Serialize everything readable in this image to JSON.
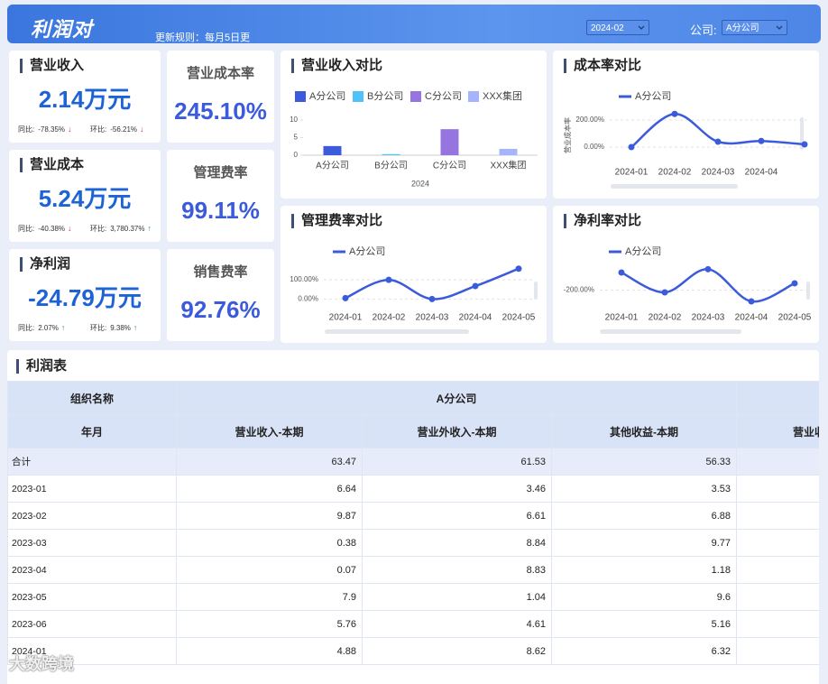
{
  "header": {
    "title": "利润对",
    "subtitle": "更新规则：每月5日更",
    "date": "2024-02",
    "company_label": "公司:",
    "company": "A分公司"
  },
  "kpis": [
    {
      "title": "营业收入",
      "value": "2.14万元",
      "yoy_label": "同比:",
      "yoy": "-78.35%",
      "yoy_dir": "down",
      "mom_label": "环比:",
      "mom": "-56.21%",
      "mom_dir": "down"
    },
    {
      "title": "营业成本",
      "value": "5.24万元",
      "yoy_label": "同比:",
      "yoy": "-40.38%",
      "yoy_dir": "down",
      "mom_label": "环比:",
      "mom": "3,780.37%",
      "mom_dir": "up"
    },
    {
      "title": "净利润",
      "value": "-24.79万元",
      "yoy_label": "同比:",
      "yoy": "2.07%",
      "yoy_dir": "up",
      "mom_label": "环比:",
      "mom": "9.38%",
      "mom_dir": "up"
    }
  ],
  "rates": [
    {
      "title": "营业成本率",
      "value": "245.10%"
    },
    {
      "title": "管理费率",
      "value": "99.11%"
    },
    {
      "title": "销售费率",
      "value": "92.76%"
    }
  ],
  "chart_data": [
    {
      "type": "bar",
      "title": "营业收入对比",
      "categories": [
        "A分公司",
        "B分公司",
        "C分公司",
        "XXX集团"
      ],
      "values": [
        2.6,
        0.3,
        7.4,
        1.8
      ],
      "colors": [
        "#3b5bdb",
        "#4fc3f7",
        "#9775e0",
        "#a5b4fc"
      ],
      "xlabel": "2024",
      "ylim": [
        0,
        10
      ],
      "yticks": [
        0,
        5,
        10
      ]
    },
    {
      "type": "line",
      "title": "成本率对比",
      "ylabel": "营业成本率",
      "categories": [
        "2024-01",
        "2024-02",
        "2024-03",
        "2024-04",
        null
      ],
      "series": [
        {
          "name": "A分公司",
          "color": "#3b5bdb",
          "values": [
            0,
            245.1,
            40,
            45,
            20
          ]
        }
      ],
      "ylim": [
        -100,
        260
      ],
      "yticks": [
        {
          "value": 0,
          "label": "0.00%"
        },
        {
          "value": 200,
          "label": "200.00%"
        }
      ],
      "grid": true
    },
    {
      "type": "line",
      "title": "管理费率对比",
      "categories": [
        "2024-01",
        "2024-02",
        "2024-03",
        "2024-04",
        "2024-05"
      ],
      "series": [
        {
          "name": "A分公司",
          "color": "#3b5bdb",
          "values": [
            5,
            99.11,
            0,
            67,
            157
          ]
        }
      ],
      "ylim": [
        -40,
        165
      ],
      "yticks": [
        {
          "value": 0,
          "label": "0.00%"
        },
        {
          "value": 100,
          "label": "100.00%"
        }
      ],
      "grid": true
    },
    {
      "type": "line",
      "title": "净利率对比",
      "categories": [
        "2024-01",
        "2024-02",
        "2024-03",
        "2024-04",
        "2024-05"
      ],
      "series": [
        {
          "name": "A分公司",
          "color": "#3b5bdb",
          "values": [
            -32,
            -222,
            0,
            -308,
            -135
          ]
        }
      ],
      "ylim": [
        -360,
        20
      ],
      "yticks": [
        {
          "value": -200,
          "label": "-200.00%"
        }
      ],
      "grid": true
    }
  ],
  "table": {
    "title": "利润表",
    "group_header": [
      "组织名称",
      "A分公司"
    ],
    "columns": [
      "年月",
      "营业收入-本期",
      "营业外收入-本期",
      "其他收益-本期",
      "营业收"
    ],
    "rows": [
      [
        "合计",
        "63.47",
        "61.53",
        "56.33"
      ],
      [
        "2023-01",
        "6.64",
        "3.46",
        "3.53"
      ],
      [
        "2023-02",
        "9.87",
        "6.61",
        "6.88"
      ],
      [
        "2023-03",
        "0.38",
        "8.84",
        "9.77"
      ],
      [
        "2023-04",
        "0.07",
        "8.83",
        "1.18"
      ],
      [
        "2023-05",
        "7.9",
        "1.04",
        "9.6"
      ],
      [
        "2023-06",
        "5.76",
        "4.61",
        "5.16"
      ],
      [
        "2024-01",
        "4.88",
        "8.62",
        "6.32"
      ]
    ]
  },
  "watermark": "大数跨境"
}
